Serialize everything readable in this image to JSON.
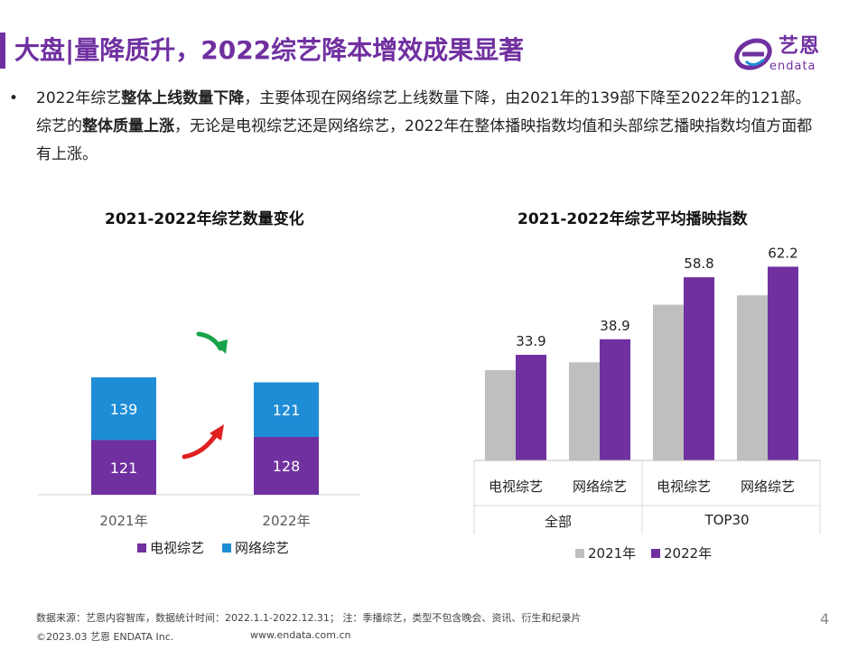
{
  "header": {
    "title": "大盘|量降质升，2022综艺降本增效成果显著",
    "logo_cn": "艺恩",
    "logo_en": "endata"
  },
  "summary": {
    "bullet": "•",
    "p1": "2022年综艺",
    "b1": "整体上线数量下降",
    "p2": "，主要体现在网络综艺上线数量下降，由2021年的139部下降至2022年的121部。综艺的",
    "b2": "整体质量上涨",
    "p3": "，无论是电视综艺还是网络综艺，2022年在整体播映指数均值和头部综艺播映指数均值方面都有上涨。"
  },
  "colors": {
    "tv": "#7030a0",
    "net": "#1f8dd6",
    "y2021": "#bfbfbf",
    "y2022": "#7030a0",
    "arrow_down": "#1aa34a",
    "arrow_up": "#e02020"
  },
  "chart_data": [
    {
      "type": "bar",
      "stacked": true,
      "title": "2021-2022年综艺数量变化",
      "categories": [
        "2021年",
        "2022年"
      ],
      "series": [
        {
          "name": "电视综艺",
          "values": [
            121,
            128
          ]
        },
        {
          "name": "网络综艺",
          "values": [
            139,
            121
          ]
        }
      ],
      "legend": [
        "电视综艺",
        "网络综艺"
      ]
    },
    {
      "type": "bar",
      "title": "2021-2022年综艺平均播映指数",
      "categories": [
        "电视综艺",
        "网络综艺",
        "电视综艺",
        "网络综艺"
      ],
      "groups": [
        "全部",
        "TOP30"
      ],
      "series": [
        {
          "name": "2021年",
          "values": [
            29,
            31.5,
            50,
            53
          ]
        },
        {
          "name": "2022年",
          "values": [
            33.9,
            38.9,
            58.8,
            62.2
          ]
        }
      ],
      "data_labels": [
        "33.9",
        "38.9",
        "58.8",
        "62.2"
      ],
      "legend": [
        "2021年",
        "2022年"
      ]
    }
  ],
  "footer": {
    "note": "数据来源：艺恩内容智库，数据统计时间：2022.1.1-2022.12.31；  注：季播综艺，类型不包含晚会、资讯、衍生和纪录片",
    "copyright": "©2023.03 艺恩 ENDATA Inc.",
    "url": "www.endata.com.cn",
    "page": "4"
  }
}
